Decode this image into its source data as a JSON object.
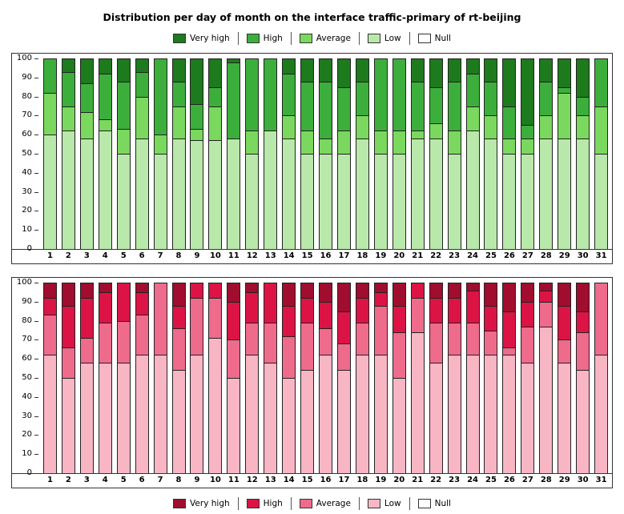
{
  "title": "Distribution per day of month on the interface traffic-primary of rt-beijing",
  "chart_data": [
    {
      "type": "bar",
      "stacked": true,
      "palette": "green",
      "title": "Distribution per day of month on the interface traffic-primary of rt-beijing",
      "xlabel": "",
      "ylabel": "",
      "ylim": [
        0,
        100
      ],
      "yticks": [
        0,
        10,
        20,
        30,
        40,
        50,
        60,
        70,
        80,
        90,
        100
      ],
      "grid": false,
      "legend_position": "top",
      "legend": [
        {
          "label": "Very high",
          "color": "#1d7a1d"
        },
        {
          "label": "High",
          "color": "#3cae3c"
        },
        {
          "label": "Average",
          "color": "#7bd85e"
        },
        {
          "label": "Low",
          "color": "#b9e8ab"
        },
        {
          "label": "Null",
          "color": "#ffffff"
        }
      ],
      "categories": [
        1,
        2,
        3,
        4,
        5,
        6,
        7,
        8,
        9,
        10,
        11,
        12,
        13,
        14,
        15,
        16,
        17,
        18,
        19,
        20,
        21,
        22,
        23,
        24,
        25,
        26,
        27,
        28,
        29,
        30,
        31
      ],
      "series": [
        {
          "name": "Low",
          "color": "#b9e8ab",
          "values": [
            60,
            62,
            58,
            62,
            50,
            58,
            50,
            58,
            57,
            57,
            58,
            50,
            62,
            58,
            50,
            50,
            50,
            58,
            50,
            50,
            58,
            58,
            50,
            62,
            58,
            50,
            50,
            58,
            58,
            58,
            50
          ]
        },
        {
          "name": "Average",
          "color": "#7bd85e",
          "values": [
            22,
            13,
            14,
            6,
            13,
            22,
            10,
            17,
            6,
            18,
            0,
            12,
            0,
            12,
            12,
            8,
            12,
            12,
            12,
            12,
            4,
            8,
            12,
            13,
            12,
            8,
            8,
            12,
            24,
            12,
            25
          ]
        },
        {
          "name": "High",
          "color": "#3cae3c",
          "values": [
            18,
            18,
            15,
            24,
            25,
            13,
            40,
            13,
            13,
            10,
            40,
            38,
            38,
            22,
            26,
            30,
            23,
            18,
            38,
            38,
            26,
            19,
            26,
            17,
            18,
            17,
            7,
            18,
            3,
            10,
            25
          ]
        },
        {
          "name": "Very high",
          "color": "#1d7a1d",
          "values": [
            0,
            7,
            13,
            8,
            12,
            7,
            0,
            12,
            24,
            15,
            2,
            0,
            0,
            8,
            12,
            12,
            15,
            12,
            0,
            0,
            12,
            15,
            12,
            8,
            12,
            25,
            35,
            12,
            15,
            20,
            0
          ]
        },
        {
          "name": "Null",
          "color": "#ffffff",
          "values": [
            0,
            0,
            0,
            0,
            0,
            0,
            0,
            0,
            0,
            0,
            0,
            0,
            0,
            0,
            0,
            0,
            0,
            0,
            0,
            0,
            0,
            0,
            0,
            0,
            0,
            0,
            0,
            0,
            0,
            0,
            0
          ]
        }
      ]
    },
    {
      "type": "bar",
      "stacked": true,
      "palette": "red",
      "title": "Distribution per day of month on the interface traffic-primary of rt-beijing",
      "xlabel": "",
      "ylabel": "",
      "ylim": [
        0,
        100
      ],
      "yticks": [
        0,
        10,
        20,
        30,
        40,
        50,
        60,
        70,
        80,
        90,
        100
      ],
      "grid": false,
      "legend_position": "bottom",
      "legend": [
        {
          "label": "Very high",
          "color": "#a00d2e"
        },
        {
          "label": "High",
          "color": "#dc1445"
        },
        {
          "label": "Average",
          "color": "#ee6b8c"
        },
        {
          "label": "Low",
          "color": "#f8b6c4"
        },
        {
          "label": "Null",
          "color": "#ffffff"
        }
      ],
      "categories": [
        1,
        2,
        3,
        4,
        5,
        6,
        7,
        8,
        9,
        10,
        11,
        12,
        13,
        14,
        15,
        16,
        17,
        18,
        19,
        20,
        21,
        22,
        23,
        24,
        25,
        26,
        27,
        28,
        29,
        30,
        31
      ],
      "series": [
        {
          "name": "Low",
          "color": "#f8b6c4",
          "values": [
            62,
            50,
            58,
            58,
            58,
            62,
            62,
            54,
            62,
            71,
            50,
            62,
            58,
            50,
            54,
            62,
            54,
            62,
            62,
            50,
            74,
            58,
            62,
            62,
            62,
            62,
            58,
            77,
            58,
            54,
            62
          ]
        },
        {
          "name": "Average",
          "color": "#ee6b8c",
          "values": [
            21,
            16,
            13,
            21,
            22,
            21,
            38,
            22,
            30,
            21,
            20,
            17,
            21,
            22,
            25,
            14,
            14,
            17,
            26,
            24,
            18,
            21,
            17,
            17,
            13,
            4,
            19,
            13,
            12,
            20,
            38
          ]
        },
        {
          "name": "High",
          "color": "#dc1445",
          "values": [
            9,
            22,
            21,
            16,
            20,
            12,
            0,
            12,
            8,
            8,
            20,
            16,
            21,
            16,
            13,
            14,
            17,
            13,
            7,
            14,
            8,
            13,
            13,
            17,
            13,
            19,
            13,
            6,
            18,
            11,
            0
          ]
        },
        {
          "name": "Very high",
          "color": "#a00d2e",
          "values": [
            8,
            12,
            8,
            5,
            0,
            5,
            0,
            12,
            0,
            0,
            10,
            5,
            0,
            12,
            8,
            10,
            15,
            8,
            5,
            12,
            0,
            8,
            8,
            4,
            12,
            15,
            10,
            4,
            12,
            15,
            0
          ]
        },
        {
          "name": "Null",
          "color": "#ffffff",
          "values": [
            0,
            0,
            0,
            0,
            0,
            0,
            0,
            0,
            0,
            0,
            0,
            0,
            0,
            0,
            0,
            0,
            0,
            0,
            0,
            0,
            0,
            0,
            0,
            0,
            0,
            0,
            0,
            0,
            0,
            0,
            0
          ]
        }
      ]
    }
  ]
}
